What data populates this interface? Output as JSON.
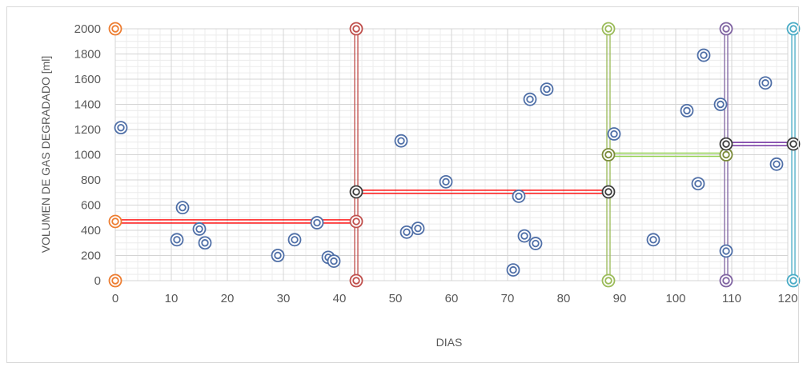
{
  "chart_data": {
    "type": "scatter",
    "title": "",
    "xlabel": "DIAS",
    "ylabel": "VOLUMEN DE GAS  DEGRADADO [ml]",
    "xlim": [
      0,
      120
    ],
    "ylim": [
      0,
      2000
    ],
    "x_ticks": [
      0,
      10,
      20,
      30,
      40,
      50,
      60,
      70,
      80,
      90,
      100,
      110,
      120
    ],
    "y_ticks": [
      0,
      200,
      400,
      600,
      800,
      1000,
      1200,
      1400,
      1600,
      1800,
      2000
    ],
    "x_tick_labels": [
      "0",
      "10",
      "20",
      "30",
      "40",
      "50",
      "60",
      "70",
      "80",
      "90",
      "100",
      "110",
      "120"
    ],
    "y_tick_labels": [
      "0",
      "200",
      "400",
      "600",
      "800",
      "1000",
      "1200",
      "1400",
      "1600",
      "1800",
      "2000"
    ],
    "grid": true,
    "legend": "none",
    "marker_colors": {
      "data": "#4f6fa7",
      "period": [
        "#ed7d31",
        "#c0504d",
        "#9bbb59",
        "#8064a2",
        "#4bacc6"
      ]
    },
    "scatter_points": [
      {
        "x": 1,
        "y": 1215
      },
      {
        "x": 11,
        "y": 325
      },
      {
        "x": 12,
        "y": 580
      },
      {
        "x": 15,
        "y": 410
      },
      {
        "x": 16,
        "y": 300
      },
      {
        "x": 29,
        "y": 200
      },
      {
        "x": 32,
        "y": 325
      },
      {
        "x": 36,
        "y": 460
      },
      {
        "x": 38,
        "y": 185
      },
      {
        "x": 39,
        "y": 155
      },
      {
        "x": 51,
        "y": 1110
      },
      {
        "x": 52,
        "y": 385
      },
      {
        "x": 54,
        "y": 415
      },
      {
        "x": 59,
        "y": 785
      },
      {
        "x": 71,
        "y": 85
      },
      {
        "x": 72,
        "y": 670
      },
      {
        "x": 73,
        "y": 355
      },
      {
        "x": 74,
        "y": 1440
      },
      {
        "x": 75,
        "y": 295
      },
      {
        "x": 77,
        "y": 1520
      },
      {
        "x": 89,
        "y": 1165
      },
      {
        "x": 96,
        "y": 325
      },
      {
        "x": 102,
        "y": 1350
      },
      {
        "x": 104,
        "y": 770
      },
      {
        "x": 105,
        "y": 1790
      },
      {
        "x": 108,
        "y": 1400
      },
      {
        "x": 109,
        "y": 235
      },
      {
        "x": 116,
        "y": 1570
      },
      {
        "x": 118,
        "y": 925
      }
    ],
    "period_boundaries": [
      {
        "x": 0,
        "color": "#ed7d31"
      },
      {
        "x": 43,
        "color": "#c0504d"
      },
      {
        "x": 88,
        "color": "#9bbb59"
      },
      {
        "x": 109,
        "color": "#8064a2"
      },
      {
        "x": 121,
        "color": "#4bacc6"
      }
    ],
    "period_means": [
      {
        "x_start": 0,
        "x_end": 43,
        "y": 470,
        "color": "#ff0000",
        "start_marker": "#ed7d31",
        "end_marker": "#c0504d"
      },
      {
        "x_start": 43,
        "x_end": 88,
        "y": 705,
        "color": "#ff0000",
        "start_marker": "#3d3d3d",
        "end_marker": "#3d3d3d"
      },
      {
        "x_start": 88,
        "x_end": 109,
        "y": 1000,
        "color": "#92d050",
        "start_marker": "#7b8b3a",
        "end_marker": "#7b8b3a"
      },
      {
        "x_start": 109,
        "x_end": 121,
        "y": 1085,
        "color": "#7030a0",
        "start_marker": "#3d3d3d",
        "end_marker": "#3d3d3d"
      }
    ]
  }
}
